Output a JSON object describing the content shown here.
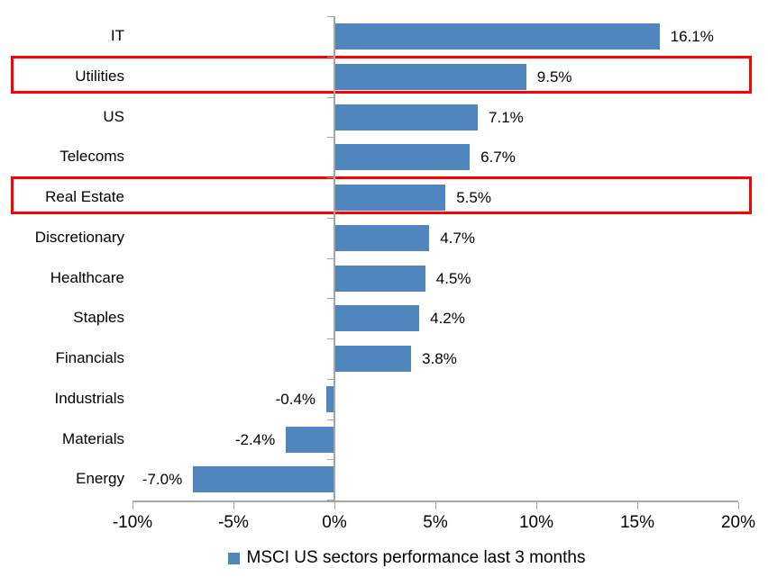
{
  "chart_data": {
    "type": "bar",
    "orientation": "horizontal",
    "title": "",
    "categories": [
      "IT",
      "Utilities",
      "US",
      "Telecoms",
      "Real Estate",
      "Discretionary",
      "Healthcare",
      "Staples",
      "Financials",
      "Industrials",
      "Materials",
      "Energy"
    ],
    "values": [
      16.1,
      9.5,
      7.1,
      6.7,
      5.5,
      4.7,
      4.5,
      4.2,
      3.8,
      -0.4,
      -2.4,
      -7.0
    ],
    "value_labels": [
      "16.1%",
      "9.5%",
      "7.1%",
      "6.7%",
      "5.5%",
      "4.7%",
      "4.5%",
      "4.2%",
      "3.8%",
      "-0.4%",
      "-2.4%",
      "-7.0%"
    ],
    "highlighted_categories": [
      "Utilities",
      "Real Estate"
    ],
    "x_tick_values": [
      -10,
      -5,
      0,
      5,
      10,
      15,
      20
    ],
    "x_tick_labels": [
      "-10%",
      "-5%",
      "0%",
      "5%",
      "10%",
      "15%",
      "20%"
    ],
    "xlim": [
      -10,
      20
    ],
    "grid": false,
    "legend_position": "bottom",
    "legend": "MSCI US sectors performance last 3 months",
    "bar_color": "#4f86be",
    "highlight_color": "#ff0000",
    "axis_color": "#a6a6a6",
    "text_color": "#000000"
  }
}
